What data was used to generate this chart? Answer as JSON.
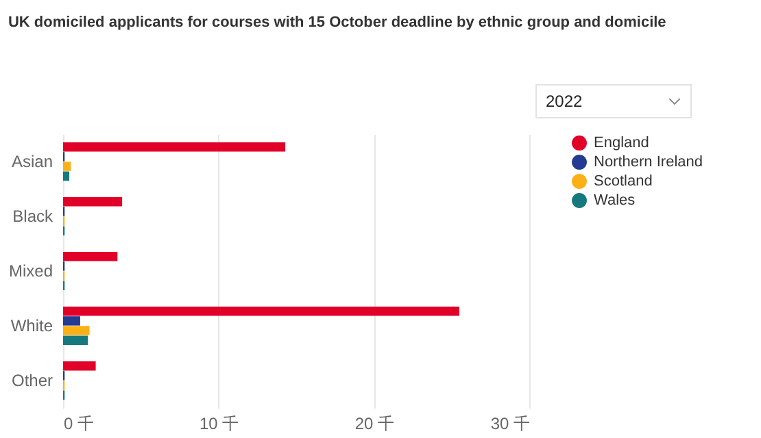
{
  "chart_data": {
    "type": "bar",
    "orientation": "horizontal",
    "title": "UK domiciled applicants for courses with 15 October deadline  by ethnic group and domicile",
    "annotations": [
      "2022"
    ],
    "categories": [
      "Asian",
      "Black",
      "Mixed",
      "White",
      "Other"
    ],
    "series": [
      {
        "name": "England",
        "color": "#e10028",
        "values": [
          14.3,
          3.8,
          3.5,
          25.5,
          2.1
        ]
      },
      {
        "name": "Northern Ireland",
        "color": "#243a93",
        "values": [
          0.1,
          0.1,
          0.1,
          1.1,
          0.1
        ]
      },
      {
        "name": "Scotland",
        "color": "#fbb015",
        "values": [
          0.5,
          0.1,
          0.1,
          1.7,
          0.1
        ]
      },
      {
        "name": "Wales",
        "color": "#16797d",
        "values": [
          0.4,
          0.1,
          0.1,
          1.6,
          0.1
        ]
      }
    ],
    "xlim": [
      0,
      30
    ],
    "xticks": [
      {
        "value": 0,
        "label": "0 千"
      },
      {
        "value": 10,
        "label": "10 千"
      },
      {
        "value": 20,
        "label": "20 千"
      },
      {
        "value": 30,
        "label": "30 千"
      }
    ],
    "grid": "x",
    "legend": "right"
  }
}
